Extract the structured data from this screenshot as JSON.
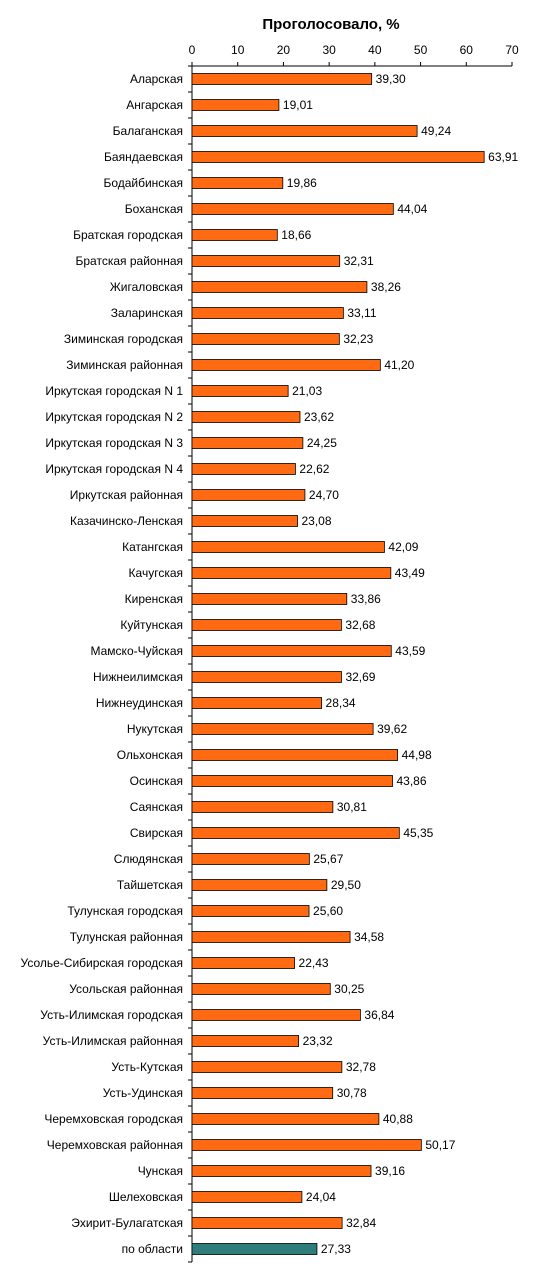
{
  "chart_data": {
    "type": "bar",
    "orientation": "horizontal",
    "title": "Проголосовало, %",
    "xlim": [
      0,
      70
    ],
    "xticks": [
      "0",
      "10",
      "20",
      "30",
      "40",
      "50",
      "60",
      "70"
    ],
    "axis_position": "top",
    "grid": false,
    "colors": {
      "bar": "#FF6A13",
      "bar_highlight": "#2E7D7A",
      "bar_edge": "#000000"
    },
    "categories": [
      "Аларская",
      "Ангарская",
      "Балаганская",
      "Баяндаевская",
      "Бодайбинская",
      "Боханская",
      "Братская городская",
      "Братская районная",
      "Жигаловская",
      "Заларинская",
      "Зиминская городская",
      "Зиминская районная",
      "Иркутская городская N 1",
      "Иркутская городская N 2",
      "Иркутская городская N 3",
      "Иркутская городская N 4",
      "Иркутская районная",
      "Казачинско-Ленская",
      "Катангская",
      "Качугская",
      "Киренская",
      "Куйтунская",
      "Мамско-Чуйская",
      "Нижнеилимская",
      "Нижнеудинская",
      "Нукутская",
      "Ольхонская",
      "Осинская",
      "Саянская",
      "Свирская",
      "Слюдянская",
      "Тайшетская",
      "Тулунская городская",
      "Тулунская районная",
      "Усолье-Сибирская городская",
      "Усольская районная",
      "Усть-Илимская городская",
      "Усть-Илимская районная",
      "Усть-Кутская",
      "Усть-Удинская",
      "Черемховская городская",
      "Черемховская районная",
      "Чунская",
      "Шелеховская",
      "Эхирит-Булагатская",
      "по области"
    ],
    "values": [
      39.3,
      19.01,
      49.24,
      63.91,
      19.86,
      44.04,
      18.66,
      32.31,
      38.26,
      33.11,
      32.23,
      41.2,
      21.03,
      23.62,
      24.25,
      22.62,
      24.7,
      23.08,
      42.09,
      43.49,
      33.86,
      32.68,
      43.59,
      32.69,
      28.34,
      39.62,
      44.98,
      43.86,
      30.81,
      45.35,
      25.67,
      29.5,
      25.6,
      34.58,
      22.43,
      30.25,
      36.84,
      23.32,
      32.78,
      30.78,
      40.88,
      50.17,
      39.16,
      24.04,
      32.84,
      27.33
    ],
    "value_labels": [
      "39,30",
      "19,01",
      "49,24",
      "63,91",
      "19,86",
      "44,04",
      "18,66",
      "32,31",
      "38,26",
      "33,11",
      "32,23",
      "41,20",
      "21,03",
      "23,62",
      "24,25",
      "22,62",
      "24,70",
      "23,08",
      "42,09",
      "43,49",
      "33,86",
      "32,68",
      "43,59",
      "32,69",
      "28,34",
      "39,62",
      "44,98",
      "43,86",
      "30,81",
      "45,35",
      "25,67",
      "29,50",
      "25,60",
      "34,58",
      "22,43",
      "30,25",
      "36,84",
      "23,32",
      "32,78",
      "30,78",
      "40,88",
      "50,17",
      "39,16",
      "24,04",
      "32,84",
      "27,33"
    ],
    "highlight_index": 45
  }
}
